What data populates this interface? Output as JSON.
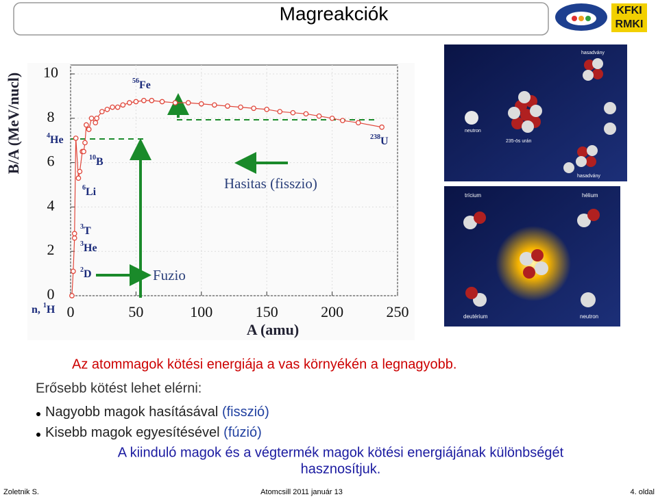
{
  "header": {
    "title": "Magreakciók",
    "logo_lines": [
      "KFKI",
      "RMKI"
    ]
  },
  "chart_data": {
    "type": "line",
    "x_label": "A (amu)",
    "y_label": "B/A (MeV/nucl)",
    "x": [
      1,
      2,
      3,
      3,
      4,
      6,
      7,
      9,
      10,
      11,
      12,
      14,
      16,
      19,
      20,
      24,
      28,
      32,
      36,
      40,
      45,
      50,
      56,
      62,
      70,
      80,
      90,
      100,
      110,
      120,
      130,
      140,
      150,
      160,
      170,
      180,
      190,
      200,
      208,
      220,
      238
    ],
    "values": [
      0,
      1.1,
      2.6,
      2.8,
      7.1,
      5.3,
      5.6,
      6.5,
      6.5,
      6.9,
      7.7,
      7.5,
      8.0,
      7.8,
      8.0,
      8.3,
      8.4,
      8.5,
      8.5,
      8.6,
      8.7,
      8.75,
      8.8,
      8.8,
      8.75,
      8.7,
      8.7,
      8.65,
      8.6,
      8.55,
      8.5,
      8.45,
      8.4,
      8.3,
      8.25,
      8.2,
      8.1,
      8.0,
      7.9,
      7.8,
      7.6
    ],
    "color": "#e0463a",
    "xlim": [
      0,
      250
    ],
    "ylim": [
      0,
      10
    ],
    "xticks": [
      0,
      50,
      100,
      150,
      200,
      250
    ],
    "yticks": [
      0,
      2,
      4,
      6,
      8,
      10
    ],
    "grid": true,
    "annotations": [
      {
        "mass": "56",
        "symbol": "Fe"
      },
      {
        "mass": "4",
        "symbol": "He"
      },
      {
        "mass": "10",
        "symbol": "B"
      },
      {
        "mass": "6",
        "symbol": "Li"
      },
      {
        "mass": "3",
        "symbol": "T"
      },
      {
        "mass": "3",
        "symbol": "He"
      },
      {
        "mass": "2",
        "symbol": "D"
      },
      {
        "prefix": "n, ",
        "mass": "1",
        "symbol": "H"
      },
      {
        "mass": "238",
        "symbol": "U"
      }
    ],
    "arrow_labels": [
      "Hasitas (fisszio)",
      "Fuzio"
    ]
  },
  "fission_figure": {
    "labels": [
      "hasadvány",
      "neutron",
      "235-ös urán",
      "hasadvány"
    ]
  },
  "fusion_figure": {
    "labels": [
      "trícium",
      "hélium",
      "deutérium",
      "neutron"
    ]
  },
  "body": {
    "highlight": "Az atommagok kötési energiája a vas környékén a legnagyobb.",
    "intro": "Erősebb kötést lehet elérni:",
    "bullets": [
      {
        "text": "Nagyobb magok hasításával",
        "note": "(fisszió)"
      },
      {
        "text": "Kisebb magok egyesítésével",
        "note": "(fúzió)"
      }
    ],
    "conclusion": [
      "A kiinduló magok és a végtermék magok kötési energiájának különbségét",
      "hasznosítjuk."
    ]
  },
  "footer": {
    "author": "Zoletnik S.",
    "event": "Atomcsill 2011 január 13",
    "page": "4. oldal"
  }
}
